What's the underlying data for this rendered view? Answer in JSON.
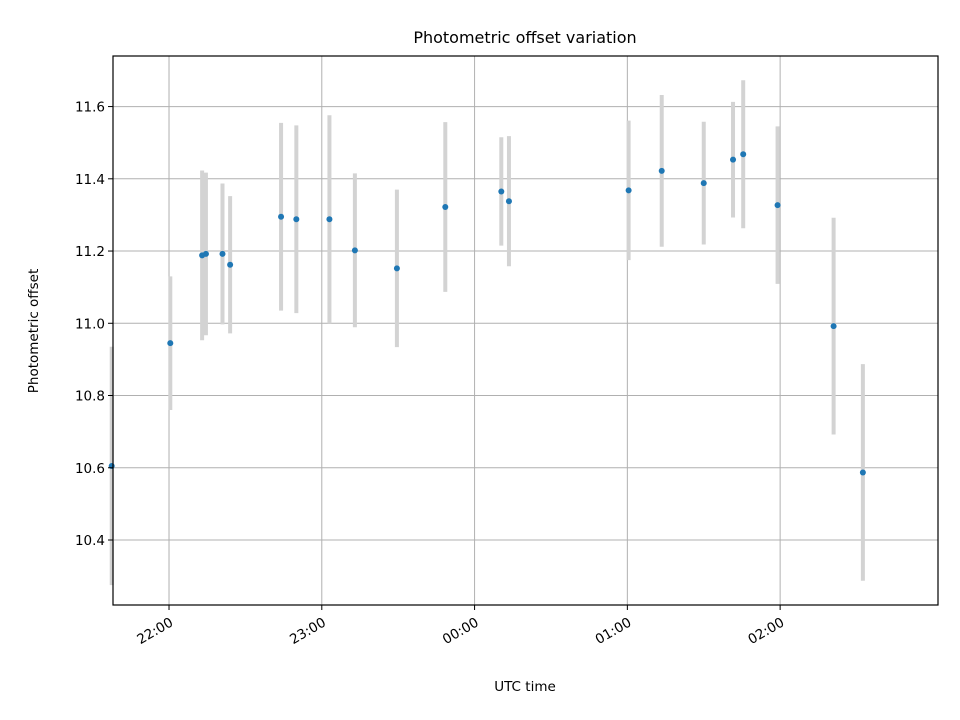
{
  "chart_data": {
    "type": "scatter",
    "title": "Photometric offset variation",
    "xlabel": "UTC time",
    "ylabel": "Photometric offset",
    "grid": true,
    "x_ticks": [
      "22:00",
      "23:00",
      "00:00",
      "01:00",
      "02:00"
    ],
    "y_ticks": [
      "10.4",
      "10.6",
      "10.8",
      "11.0",
      "11.2",
      "11.4",
      "11.6"
    ],
    "xlim": [
      "21:38",
      "03:02"
    ],
    "ylim": [
      10.22,
      11.74
    ],
    "series": [
      {
        "points": [
          {
            "x": "21:37:30",
            "y": 10.605,
            "err": 0.33
          },
          {
            "x": "22:00:30",
            "y": 10.945,
            "err": 0.185
          },
          {
            "x": "22:13:00",
            "y": 11.188,
            "err": 0.235
          },
          {
            "x": "22:14:30",
            "y": 11.192,
            "err": 0.225
          },
          {
            "x": "22:21:00",
            "y": 11.192,
            "err": 0.195
          },
          {
            "x": "22:24:00",
            "y": 11.162,
            "err": 0.19
          },
          {
            "x": "22:44:00",
            "y": 11.295,
            "err": 0.26
          },
          {
            "x": "22:50:00",
            "y": 11.288,
            "err": 0.26
          },
          {
            "x": "23:03:00",
            "y": 11.288,
            "err": 0.288
          },
          {
            "x": "23:13:00",
            "y": 11.202,
            "err": 0.213
          },
          {
            "x": "23:29:30",
            "y": 11.152,
            "err": 0.218
          },
          {
            "x": "23:48:30",
            "y": 11.322,
            "err": 0.235
          },
          {
            "x": "00:10:30",
            "y": 11.365,
            "err": 0.15
          },
          {
            "x": "00:13:30",
            "y": 11.338,
            "err": 0.18
          },
          {
            "x": "01:00:30",
            "y": 11.368,
            "err": 0.193
          },
          {
            "x": "01:13:30",
            "y": 11.422,
            "err": 0.21
          },
          {
            "x": "01:30:00",
            "y": 11.388,
            "err": 0.17
          },
          {
            "x": "01:41:30",
            "y": 11.453,
            "err": 0.16
          },
          {
            "x": "01:45:30",
            "y": 11.468,
            "err": 0.205
          },
          {
            "x": "01:59:00",
            "y": 11.327,
            "err": 0.218
          },
          {
            "x": "02:21:00",
            "y": 10.992,
            "err": 0.3
          },
          {
            "x": "02:32:30",
            "y": 10.587,
            "err": 0.3
          }
        ]
      }
    ]
  },
  "colors": {
    "point": "#1f77b4",
    "errorbar": "#d3d3d3",
    "grid": "#b0b0b0"
  }
}
